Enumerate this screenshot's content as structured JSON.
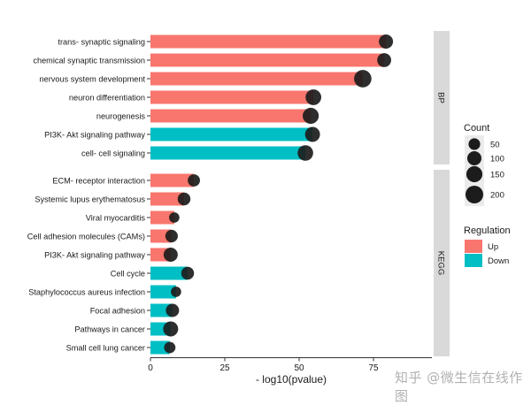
{
  "chart_data": {
    "type": "bar",
    "title": "",
    "xlabel": "- log10(pvalue)",
    "ylabel": "",
    "xlim": [
      0,
      94
    ],
    "xticks": [
      0,
      25,
      50,
      75
    ],
    "orientation": "horizontal",
    "facets": [
      {
        "name": "BP",
        "rows": [
          {
            "term": "trans- synaptic signaling",
            "value": 79.2,
            "count": 100,
            "regulation": "Up"
          },
          {
            "term": "chemical synaptic transmission",
            "value": 78.6,
            "count": 95,
            "regulation": "Up"
          },
          {
            "term": "nervous system development",
            "value": 71.4,
            "count": 190,
            "regulation": "Up"
          },
          {
            "term": "neuron differentiation",
            "value": 54.8,
            "count": 140,
            "regulation": "Up"
          },
          {
            "term": "neurogenesis",
            "value": 53.9,
            "count": 150,
            "regulation": "Up"
          },
          {
            "term": "PI3K- Akt signaling pathway",
            "value": 54.5,
            "count": 120,
            "regulation": "Down"
          },
          {
            "term": "cell- cell signaling",
            "value": 52.1,
            "count": 135,
            "regulation": "Down"
          }
        ]
      },
      {
        "name": "KEGG",
        "rows": [
          {
            "term": "ECM- receptor interaction",
            "value": 14.6,
            "count": 60,
            "regulation": "Up"
          },
          {
            "term": "Systemic lupus erythematosus",
            "value": 11.3,
            "count": 70,
            "regulation": "Up"
          },
          {
            "term": "Viral myocarditis",
            "value": 8.0,
            "count": 30,
            "regulation": "Up"
          },
          {
            "term": "Cell adhesion molecules (CAMs)",
            "value": 7.1,
            "count": 65,
            "regulation": "Up"
          },
          {
            "term": "PI3K- Akt signaling pathway",
            "value": 6.8,
            "count": 100,
            "regulation": "Up"
          },
          {
            "term": "Cell cycle",
            "value": 12.5,
            "count": 70,
            "regulation": "Down"
          },
          {
            "term": "Staphylococcus aureus infection",
            "value": 8.6,
            "count": 30,
            "regulation": "Down"
          },
          {
            "term": "Focal adhesion",
            "value": 7.4,
            "count": 80,
            "regulation": "Down"
          },
          {
            "term": "Pathways in cancer",
            "value": 6.8,
            "count": 120,
            "regulation": "Down"
          },
          {
            "term": "Small cell lung cancer",
            "value": 6.5,
            "count": 45,
            "regulation": "Down"
          }
        ]
      }
    ],
    "legend": {
      "count": {
        "title": "Count",
        "levels": [
          50,
          100,
          150,
          200
        ]
      },
      "regulation": {
        "title": "Regulation",
        "levels": [
          {
            "label": "Up",
            "color": "#F8766D"
          },
          {
            "label": "Down",
            "color": "#00BFC4"
          }
        ]
      }
    },
    "legend_position": "right"
  },
  "colors": {
    "up": "#F8766D",
    "down": "#00BFC4",
    "point": "#1c1c1c",
    "strip": "#D9D9D9",
    "legend_key_bg": "#EBEBEB"
  },
  "watermark": "知乎 @微生信在线作图"
}
